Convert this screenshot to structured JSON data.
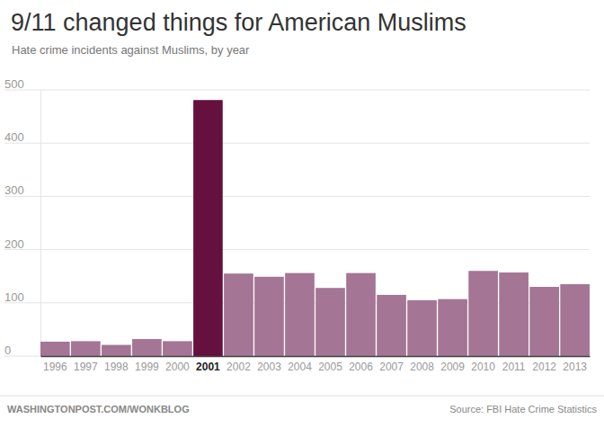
{
  "chart_data": {
    "type": "bar",
    "title": "9/11 changed things for American Muslims",
    "subtitle": "Hate crime incidents against Muslims, by year",
    "categories": [
      "1996",
      "1997",
      "1998",
      "1999",
      "2000",
      "2001",
      "2002",
      "2003",
      "2004",
      "2005",
      "2006",
      "2007",
      "2008",
      "2009",
      "2010",
      "2011",
      "2012",
      "2013"
    ],
    "values": [
      27,
      28,
      21,
      32,
      28,
      481,
      155,
      149,
      156,
      128,
      156,
      115,
      105,
      107,
      160,
      157,
      130,
      135
    ],
    "colors": [
      "#a47594",
      "#a47594",
      "#a47594",
      "#a47594",
      "#a47594",
      "#65103f",
      "#a47594",
      "#a47594",
      "#a47594",
      "#a47594",
      "#a47594",
      "#a47594",
      "#a47594",
      "#a47594",
      "#a47594",
      "#a47594",
      "#a47594",
      "#a47594"
    ],
    "ylim": [
      0,
      500
    ],
    "yticks": [
      0,
      100,
      200,
      300,
      400,
      500
    ],
    "grid": true,
    "credit": "WASHINGTONPOST.COM/WONKBLOG",
    "source": "Source: FBI Hate Crime Statistics"
  }
}
